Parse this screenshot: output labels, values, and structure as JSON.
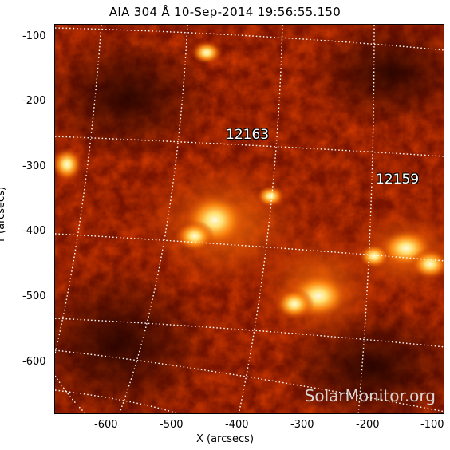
{
  "header": {
    "title": "AIA 304 Å 10-Sep-2014 19:56:55.150"
  },
  "axes": {
    "xlabel": "X (arcsecs)",
    "ylabel": "Y (arcsecs)",
    "x_ticks": [
      "-600",
      "-500",
      "-400",
      "-300",
      "-200",
      "-100"
    ],
    "y_ticks": [
      "-100",
      "-200",
      "-300",
      "-400",
      "-500",
      "-600"
    ],
    "x_range": [
      -690,
      -95
    ],
    "y_range": [
      -680,
      -85
    ]
  },
  "regions": [
    {
      "label": "12163",
      "x": -395,
      "y": -255
    },
    {
      "label": "12159",
      "x": -150,
      "y": -320
    }
  ],
  "image": {
    "colormap": "sdo-aia-304",
    "colors": {
      "dark": "#2a0200",
      "mid": "#b82a00",
      "bright": "#ff8a10",
      "hot": "#fff4c8"
    },
    "grid": "dotted heliographic lines"
  },
  "watermark": "SolarMonitor.org"
}
